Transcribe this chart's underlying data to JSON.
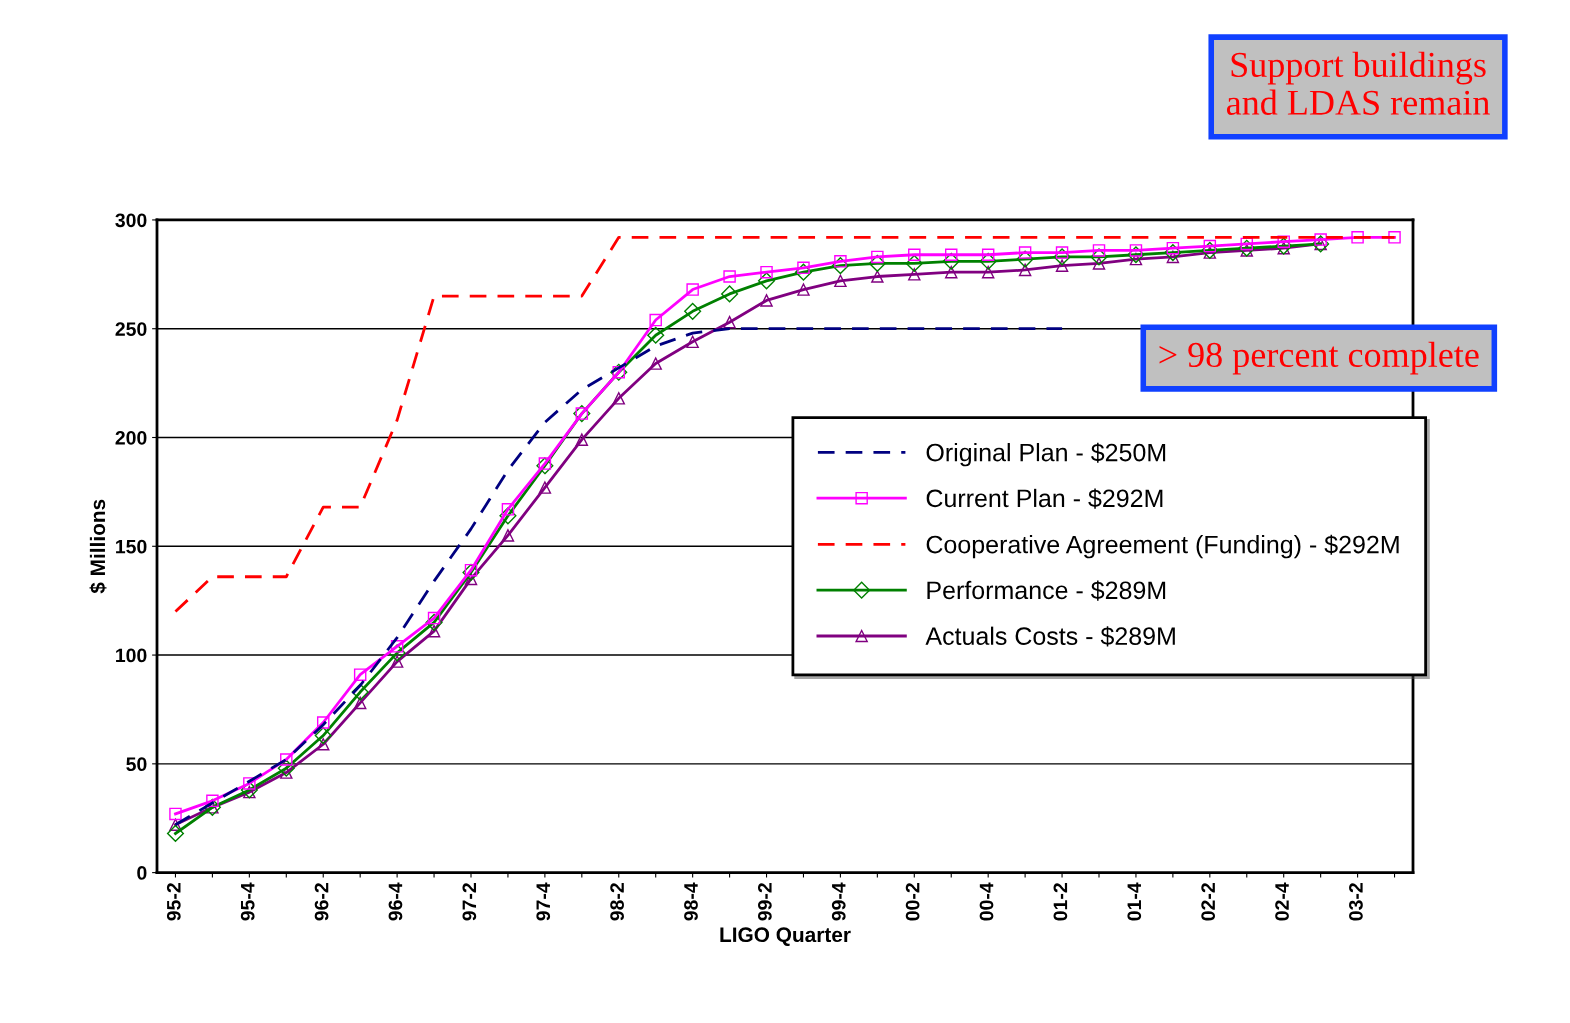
{
  "chart_data": {
    "type": "line",
    "xlabel": "LIGO Quarter",
    "ylabel": "$ Millions",
    "categories": [
      "95-2",
      null,
      "95-4",
      null,
      "96-2",
      null,
      "96-4",
      null,
      "97-2",
      null,
      "97-4",
      null,
      "98-2",
      null,
      "98-4",
      null,
      "99-2",
      null,
      "99-4",
      null,
      "00-2",
      null,
      "00-4",
      null,
      "01-2",
      null,
      "01-4",
      null,
      "02-2",
      null,
      "02-4",
      null,
      "03-2",
      null
    ],
    "ylim": [
      0,
      300
    ],
    "yticks": [
      0,
      50,
      100,
      150,
      200,
      250,
      300
    ],
    "grid": "y",
    "legend": "center right",
    "series": [
      {
        "name": "Original Plan - $250M",
        "color": "#000080",
        "line_style": "dashed",
        "marker": "none",
        "values": [
          22,
          32,
          42,
          52,
          68,
          86,
          108,
          134,
          158,
          185,
          207,
          222,
          232,
          242,
          248,
          250,
          250,
          250,
          250,
          250,
          250,
          250,
          250,
          250,
          250,
          null,
          null,
          null,
          null,
          null,
          null,
          null,
          null,
          null
        ]
      },
      {
        "name": "Current Plan - $292M",
        "color": "#ff00ff",
        "line_style": "solid",
        "marker": "square",
        "values": [
          27,
          33,
          41,
          52,
          69,
          91,
          104,
          117,
          139,
          167,
          188,
          211,
          230,
          254,
          268,
          274,
          276,
          278,
          281,
          283,
          284,
          284,
          284,
          285,
          285,
          286,
          286,
          287,
          288,
          289,
          290,
          291,
          292,
          292
        ]
      },
      {
        "name": "Cooperative Agreement (Funding) - $292M",
        "color": "#ff0000",
        "line_style": "dashed",
        "marker": "none",
        "values": [
          120,
          136,
          136,
          136,
          168,
          168,
          208,
          265,
          265,
          265,
          265,
          265,
          292,
          292,
          292,
          292,
          292,
          292,
          292,
          292,
          292,
          292,
          292,
          292,
          292,
          292,
          292,
          292,
          292,
          292,
          292,
          292,
          292,
          292
        ]
      },
      {
        "name": "Performance - $289M",
        "color": "#008000",
        "line_style": "solid",
        "marker": "diamond",
        "values": [
          18,
          30,
          38,
          48,
          63,
          83,
          101,
          115,
          138,
          164,
          187,
          211,
          230,
          247,
          258,
          266,
          272,
          276,
          279,
          280,
          280,
          281,
          281,
          282,
          283,
          283,
          284,
          285,
          286,
          287,
          288,
          289,
          null,
          null
        ]
      },
      {
        "name": "Actuals Costs - $289M",
        "color": "#800080",
        "line_style": "solid",
        "marker": "triangle",
        "values": [
          22,
          30,
          37,
          46,
          59,
          78,
          97,
          111,
          135,
          155,
          177,
          199,
          218,
          234,
          244,
          253,
          263,
          268,
          272,
          274,
          275,
          276,
          276,
          277,
          279,
          280,
          282,
          283,
          285,
          286,
          287,
          289,
          null,
          null
        ]
      }
    ],
    "annotations": [
      "Support buildings and LDAS remain",
      "> 98 percent complete"
    ]
  }
}
